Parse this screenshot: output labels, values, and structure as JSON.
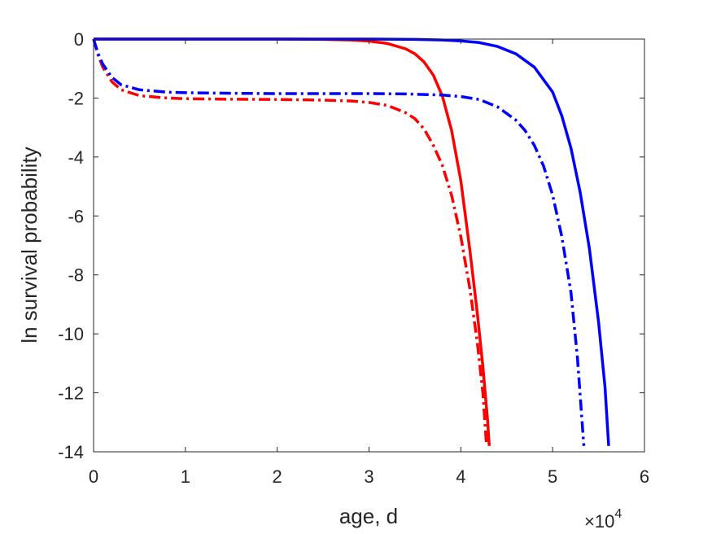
{
  "chart_data": {
    "type": "line",
    "xlabel": "age, d",
    "ylabel": "ln survival probability",
    "x_multiplier": {
      "base": "×10",
      "exponent": "4"
    },
    "xlim": [
      0,
      60000
    ],
    "ylim": [
      -14,
      0
    ],
    "x_ticks": [
      0,
      10000,
      20000,
      30000,
      40000,
      50000,
      60000
    ],
    "x_tick_labels": [
      "0",
      "1",
      "2",
      "3",
      "4",
      "5",
      "6"
    ],
    "y_ticks": [
      0,
      -2,
      -4,
      -6,
      -8,
      -10,
      -12,
      -14
    ],
    "y_tick_labels": [
      "0",
      "-2",
      "-4",
      "-6",
      "-8",
      "-10",
      "-12",
      "-14"
    ],
    "grid": false,
    "series": [
      {
        "color": "#ff0000",
        "style": "solid",
        "x": [
          0,
          5000,
          10000,
          15000,
          20000,
          25000,
          28000,
          30000,
          32000,
          34000,
          35000,
          36000,
          37000,
          38000,
          39000,
          40000,
          41000,
          41800,
          42400,
          42900,
          43100
        ],
        "y": [
          0,
          0,
          0,
          0,
          0,
          -0.01,
          -0.03,
          -0.07,
          -0.15,
          -0.33,
          -0.5,
          -0.78,
          -1.22,
          -1.95,
          -3.1,
          -4.8,
          -7.2,
          -9.3,
          -11.1,
          -12.9,
          -13.8
        ]
      },
      {
        "color": "#ff0000",
        "style": "dashdot",
        "x": [
          0,
          500,
          1000,
          2000,
          3000,
          5000,
          8000,
          10000,
          15000,
          20000,
          25000,
          28000,
          30000,
          32000,
          34000,
          35000,
          36000,
          37000,
          38000,
          39000,
          40000,
          41000,
          41800,
          42400,
          42800
        ],
        "y": [
          0,
          -0.55,
          -0.95,
          -1.45,
          -1.72,
          -1.92,
          -2.0,
          -2.02,
          -2.04,
          -2.05,
          -2.07,
          -2.1,
          -2.15,
          -2.25,
          -2.5,
          -2.7,
          -3.05,
          -3.6,
          -4.3,
          -5.3,
          -6.7,
          -8.5,
          -10.3,
          -12.0,
          -13.8
        ]
      },
      {
        "color": "#0000ff",
        "style": "solid",
        "x": [
          0,
          10000,
          20000,
          30000,
          35000,
          38000,
          40000,
          42000,
          44000,
          46000,
          48000,
          50000,
          51000,
          52000,
          53000,
          54000,
          55000,
          55700,
          56100
        ],
        "y": [
          0,
          0,
          0,
          0,
          -0.01,
          -0.03,
          -0.06,
          -0.12,
          -0.25,
          -0.5,
          -0.95,
          -1.8,
          -2.6,
          -3.7,
          -5.2,
          -7.1,
          -9.6,
          -11.8,
          -13.8
        ]
      },
      {
        "color": "#0000ff",
        "style": "dashdot",
        "x": [
          0,
          500,
          1000,
          2000,
          3000,
          5000,
          8000,
          10000,
          15000,
          20000,
          25000,
          30000,
          34000,
          38000,
          40000,
          42000,
          44000,
          46000,
          47000,
          48000,
          49000,
          50000,
          51000,
          52000,
          52700,
          53400
        ],
        "y": [
          0,
          -0.5,
          -0.85,
          -1.3,
          -1.55,
          -1.72,
          -1.8,
          -1.82,
          -1.84,
          -1.85,
          -1.85,
          -1.85,
          -1.86,
          -1.9,
          -1.95,
          -2.05,
          -2.3,
          -2.75,
          -3.1,
          -3.6,
          -4.3,
          -5.3,
          -6.7,
          -8.6,
          -10.8,
          -13.8
        ]
      }
    ]
  }
}
